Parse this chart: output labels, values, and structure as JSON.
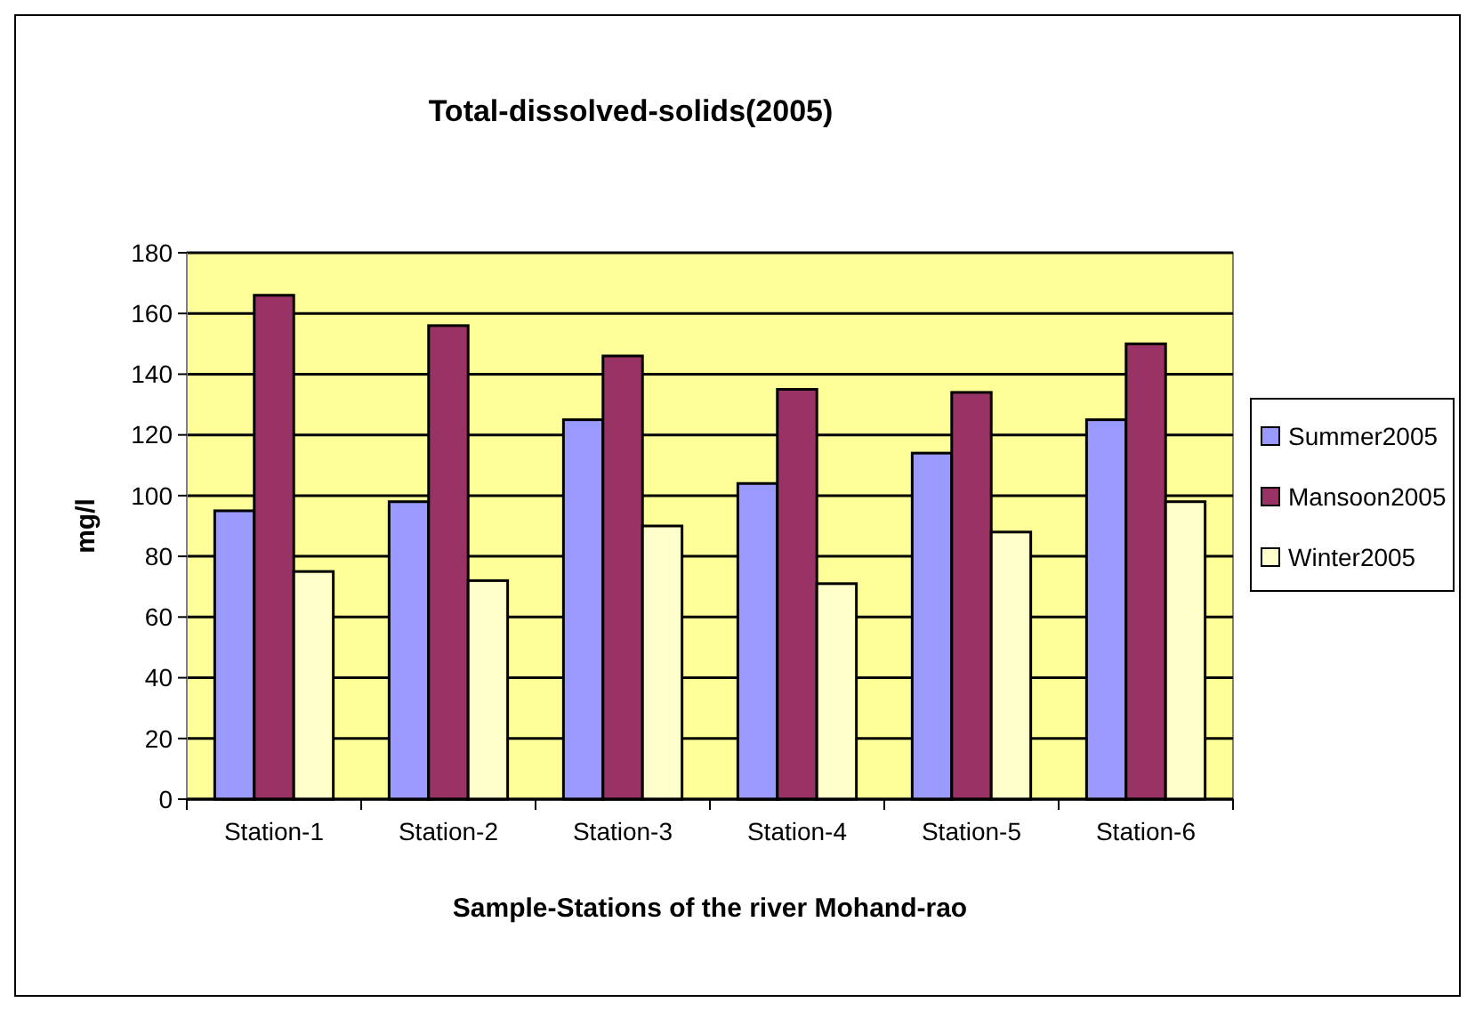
{
  "chart_data": {
    "type": "bar",
    "title": "Total-dissolved-solids(2005)",
    "xlabel": "Sample-Stations of the river Mohand-rao",
    "ylabel": "mg/l",
    "categories": [
      "Station-1",
      "Station-2",
      "Station-3",
      "Station-4",
      "Station-5",
      "Station-6"
    ],
    "series": [
      {
        "name": "Summer2005",
        "color": "#9999ff",
        "values": [
          95,
          98,
          125,
          104,
          114,
          125
        ]
      },
      {
        "name": "Mansoon2005",
        "color": "#993366",
        "values": [
          166,
          156,
          146,
          135,
          134,
          150
        ]
      },
      {
        "name": "Winter2005",
        "color": "#ffffcc",
        "values": [
          75,
          72,
          90,
          71,
          88,
          98
        ]
      }
    ],
    "ylim": [
      0,
      180
    ],
    "yticks": [
      0,
      20,
      40,
      60,
      80,
      100,
      120,
      140,
      160,
      180
    ],
    "grid": "y",
    "legend": "right"
  }
}
